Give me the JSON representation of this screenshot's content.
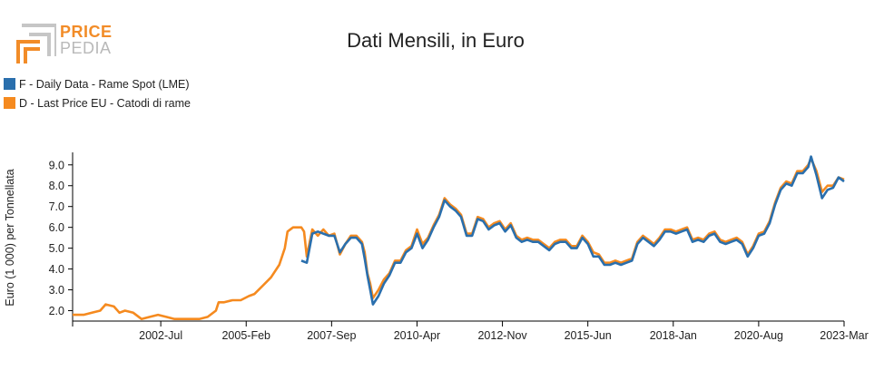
{
  "logo": {
    "word1": "PRICE",
    "word2": "PEDIA"
  },
  "colors": {
    "series0": "#2a6fad",
    "series1": "#f58a1f",
    "axis": "#000000",
    "logo_accent": "#f28c28"
  },
  "chart_data": {
    "type": "line",
    "title": "Dati Mensili, in Euro",
    "ylabel": "Euro (1 000) per Tonnellata",
    "xlabel": "",
    "ylim": [
      1.5,
      9.6
    ],
    "yticks": [
      "2.0",
      "3.0",
      "4.0",
      "5.0",
      "6.0",
      "7.0",
      "8.0",
      "9.0"
    ],
    "xlim": [
      "1999-11",
      "2023-03"
    ],
    "xticks": [
      "2002-Jul",
      "2005-Feb",
      "2007-Sep",
      "2010-Apr",
      "2012-Nov",
      "2015-Jun",
      "2018-Jan",
      "2020-Aug",
      "2023-Mar"
    ],
    "grid": false,
    "legend": "top-left",
    "series": [
      {
        "name": "F - Daily Data - Rame Spot (LME)",
        "points": [
          [
            "2006-10",
            4.4
          ],
          [
            "2006-12",
            4.3
          ],
          [
            "2007-02",
            5.7
          ],
          [
            "2007-04",
            5.8
          ],
          [
            "2007-06",
            5.7
          ],
          [
            "2007-08",
            5.6
          ],
          [
            "2007-10",
            5.6
          ],
          [
            "2007-12",
            4.8
          ],
          [
            "2008-02",
            5.2
          ],
          [
            "2008-04",
            5.5
          ],
          [
            "2008-06",
            5.5
          ],
          [
            "2008-08",
            5.2
          ],
          [
            "2008-09",
            4.5
          ],
          [
            "2008-10",
            3.7
          ],
          [
            "2008-11",
            3.0
          ],
          [
            "2008-12",
            2.3
          ],
          [
            "2009-02",
            2.7
          ],
          [
            "2009-04",
            3.3
          ],
          [
            "2009-06",
            3.7
          ],
          [
            "2009-08",
            4.3
          ],
          [
            "2009-10",
            4.3
          ],
          [
            "2009-12",
            4.8
          ],
          [
            "2010-02",
            5.0
          ],
          [
            "2010-04",
            5.7
          ],
          [
            "2010-06",
            5.0
          ],
          [
            "2010-08",
            5.4
          ],
          [
            "2010-10",
            6.0
          ],
          [
            "2010-12",
            6.5
          ],
          [
            "2011-02",
            7.3
          ],
          [
            "2011-04",
            7.0
          ],
          [
            "2011-06",
            6.8
          ],
          [
            "2011-08",
            6.5
          ],
          [
            "2011-10",
            5.6
          ],
          [
            "2011-12",
            5.6
          ],
          [
            "2012-02",
            6.4
          ],
          [
            "2012-04",
            6.3
          ],
          [
            "2012-06",
            5.9
          ],
          [
            "2012-08",
            6.1
          ],
          [
            "2012-10",
            6.2
          ],
          [
            "2012-12",
            5.8
          ],
          [
            "2013-02",
            6.1
          ],
          [
            "2013-04",
            5.5
          ],
          [
            "2013-06",
            5.3
          ],
          [
            "2013-08",
            5.4
          ],
          [
            "2013-10",
            5.3
          ],
          [
            "2013-12",
            5.3
          ],
          [
            "2014-02",
            5.1
          ],
          [
            "2014-04",
            4.9
          ],
          [
            "2014-06",
            5.2
          ],
          [
            "2014-08",
            5.3
          ],
          [
            "2014-10",
            5.3
          ],
          [
            "2014-12",
            5.0
          ],
          [
            "2015-02",
            5.0
          ],
          [
            "2015-04",
            5.5
          ],
          [
            "2015-06",
            5.2
          ],
          [
            "2015-08",
            4.6
          ],
          [
            "2015-10",
            4.6
          ],
          [
            "2015-12",
            4.2
          ],
          [
            "2016-02",
            4.2
          ],
          [
            "2016-04",
            4.3
          ],
          [
            "2016-06",
            4.2
          ],
          [
            "2016-08",
            4.3
          ],
          [
            "2016-10",
            4.4
          ],
          [
            "2016-12",
            5.2
          ],
          [
            "2017-02",
            5.5
          ],
          [
            "2017-04",
            5.3
          ],
          [
            "2017-06",
            5.1
          ],
          [
            "2017-08",
            5.4
          ],
          [
            "2017-10",
            5.8
          ],
          [
            "2017-12",
            5.8
          ],
          [
            "2018-02",
            5.7
          ],
          [
            "2018-04",
            5.8
          ],
          [
            "2018-06",
            5.9
          ],
          [
            "2018-08",
            5.3
          ],
          [
            "2018-10",
            5.4
          ],
          [
            "2018-12",
            5.3
          ],
          [
            "2019-02",
            5.6
          ],
          [
            "2019-04",
            5.7
          ],
          [
            "2019-06",
            5.3
          ],
          [
            "2019-08",
            5.2
          ],
          [
            "2019-10",
            5.3
          ],
          [
            "2019-12",
            5.4
          ],
          [
            "2020-02",
            5.2
          ],
          [
            "2020-04",
            4.6
          ],
          [
            "2020-06",
            5.0
          ],
          [
            "2020-08",
            5.6
          ],
          [
            "2020-10",
            5.7
          ],
          [
            "2020-12",
            6.2
          ],
          [
            "2021-02",
            7.1
          ],
          [
            "2021-04",
            7.8
          ],
          [
            "2021-06",
            8.1
          ],
          [
            "2021-08",
            8.0
          ],
          [
            "2021-10",
            8.6
          ],
          [
            "2021-12",
            8.6
          ],
          [
            "2022-02",
            8.9
          ],
          [
            "2022-03",
            9.4
          ],
          [
            "2022-05",
            8.5
          ],
          [
            "2022-07",
            7.4
          ],
          [
            "2022-09",
            7.8
          ],
          [
            "2022-11",
            7.9
          ],
          [
            "2023-01",
            8.4
          ],
          [
            "2023-03",
            8.2
          ]
        ]
      },
      {
        "name": "D - Last Price EU - Catodi di rame",
        "points": [
          [
            "1999-11",
            1.8
          ],
          [
            "2000-03",
            1.8
          ],
          [
            "2000-06",
            1.9
          ],
          [
            "2000-09",
            2.0
          ],
          [
            "2000-11",
            2.3
          ],
          [
            "2001-02",
            2.2
          ],
          [
            "2001-04",
            1.9
          ],
          [
            "2001-06",
            2.0
          ],
          [
            "2001-09",
            1.9
          ],
          [
            "2001-12",
            1.6
          ],
          [
            "2002-03",
            1.7
          ],
          [
            "2002-06",
            1.8
          ],
          [
            "2002-09",
            1.7
          ],
          [
            "2002-12",
            1.6
          ],
          [
            "2003-03",
            1.6
          ],
          [
            "2003-06",
            1.6
          ],
          [
            "2003-09",
            1.6
          ],
          [
            "2003-12",
            1.7
          ],
          [
            "2004-03",
            2.0
          ],
          [
            "2004-04",
            2.4
          ],
          [
            "2004-06",
            2.4
          ],
          [
            "2004-09",
            2.5
          ],
          [
            "2004-12",
            2.5
          ],
          [
            "2005-03",
            2.7
          ],
          [
            "2005-05",
            2.8
          ],
          [
            "2005-08",
            3.2
          ],
          [
            "2005-11",
            3.6
          ],
          [
            "2006-02",
            4.2
          ],
          [
            "2006-04",
            5.0
          ],
          [
            "2006-05",
            5.8
          ],
          [
            "2006-07",
            6.0
          ],
          [
            "2006-10",
            6.0
          ],
          [
            "2006-11",
            5.8
          ],
          [
            "2006-12",
            4.6
          ],
          [
            "2007-02",
            5.9
          ],
          [
            "2007-04",
            5.6
          ],
          [
            "2007-06",
            5.9
          ],
          [
            "2007-08",
            5.6
          ],
          [
            "2007-10",
            5.7
          ],
          [
            "2007-12",
            4.7
          ],
          [
            "2008-02",
            5.2
          ],
          [
            "2008-04",
            5.6
          ],
          [
            "2008-06",
            5.6
          ],
          [
            "2008-08",
            5.3
          ],
          [
            "2008-09",
            4.8
          ],
          [
            "2008-10",
            3.8
          ],
          [
            "2008-11",
            3.3
          ],
          [
            "2008-12",
            2.6
          ],
          [
            "2009-02",
            3.0
          ],
          [
            "2009-04",
            3.5
          ],
          [
            "2009-06",
            3.8
          ],
          [
            "2009-08",
            4.4
          ],
          [
            "2009-10",
            4.4
          ],
          [
            "2009-12",
            4.9
          ],
          [
            "2010-02",
            5.1
          ],
          [
            "2010-04",
            5.9
          ],
          [
            "2010-06",
            5.2
          ],
          [
            "2010-08",
            5.5
          ],
          [
            "2010-10",
            6.1
          ],
          [
            "2010-12",
            6.6
          ],
          [
            "2011-02",
            7.4
          ],
          [
            "2011-04",
            7.1
          ],
          [
            "2011-06",
            6.9
          ],
          [
            "2011-08",
            6.6
          ],
          [
            "2011-10",
            5.7
          ],
          [
            "2011-12",
            5.7
          ],
          [
            "2012-02",
            6.5
          ],
          [
            "2012-04",
            6.4
          ],
          [
            "2012-06",
            6.0
          ],
          [
            "2012-08",
            6.2
          ],
          [
            "2012-10",
            6.3
          ],
          [
            "2012-12",
            5.9
          ],
          [
            "2013-02",
            6.2
          ],
          [
            "2013-04",
            5.6
          ],
          [
            "2013-06",
            5.4
          ],
          [
            "2013-08",
            5.5
          ],
          [
            "2013-10",
            5.4
          ],
          [
            "2013-12",
            5.4
          ],
          [
            "2014-02",
            5.2
          ],
          [
            "2014-04",
            5.0
          ],
          [
            "2014-06",
            5.3
          ],
          [
            "2014-08",
            5.4
          ],
          [
            "2014-10",
            5.4
          ],
          [
            "2014-12",
            5.1
          ],
          [
            "2015-02",
            5.1
          ],
          [
            "2015-04",
            5.6
          ],
          [
            "2015-06",
            5.3
          ],
          [
            "2015-08",
            4.8
          ],
          [
            "2015-10",
            4.7
          ],
          [
            "2015-12",
            4.3
          ],
          [
            "2016-02",
            4.3
          ],
          [
            "2016-04",
            4.4
          ],
          [
            "2016-06",
            4.3
          ],
          [
            "2016-08",
            4.4
          ],
          [
            "2016-10",
            4.5
          ],
          [
            "2016-12",
            5.3
          ],
          [
            "2017-02",
            5.6
          ],
          [
            "2017-04",
            5.4
          ],
          [
            "2017-06",
            5.2
          ],
          [
            "2017-08",
            5.5
          ],
          [
            "2017-10",
            5.9
          ],
          [
            "2017-12",
            5.9
          ],
          [
            "2018-02",
            5.8
          ],
          [
            "2018-04",
            5.9
          ],
          [
            "2018-06",
            6.0
          ],
          [
            "2018-08",
            5.4
          ],
          [
            "2018-10",
            5.5
          ],
          [
            "2018-12",
            5.4
          ],
          [
            "2019-02",
            5.7
          ],
          [
            "2019-04",
            5.8
          ],
          [
            "2019-06",
            5.4
          ],
          [
            "2019-08",
            5.3
          ],
          [
            "2019-10",
            5.4
          ],
          [
            "2019-12",
            5.5
          ],
          [
            "2020-02",
            5.3
          ],
          [
            "2020-04",
            4.7
          ],
          [
            "2020-06",
            5.1
          ],
          [
            "2020-08",
            5.7
          ],
          [
            "2020-10",
            5.8
          ],
          [
            "2020-12",
            6.3
          ],
          [
            "2021-02",
            7.2
          ],
          [
            "2021-04",
            7.9
          ],
          [
            "2021-06",
            8.2
          ],
          [
            "2021-08",
            8.1
          ],
          [
            "2021-10",
            8.7
          ],
          [
            "2021-12",
            8.7
          ],
          [
            "2022-02",
            9.0
          ],
          [
            "2022-03",
            9.3
          ],
          [
            "2022-05",
            8.7
          ],
          [
            "2022-07",
            7.7
          ],
          [
            "2022-09",
            8.0
          ],
          [
            "2022-11",
            8.0
          ],
          [
            "2023-01",
            8.4
          ],
          [
            "2023-03",
            8.3
          ]
        ]
      }
    ]
  }
}
